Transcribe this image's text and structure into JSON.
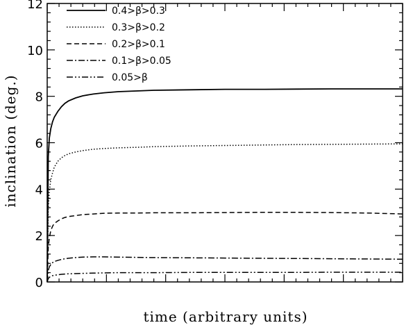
{
  "chart_data": {
    "type": "line",
    "title": "",
    "xlabel": "time (arbitrary units)",
    "ylabel": "inclination (deg.)",
    "xlim": [
      0,
      100
    ],
    "ylim": [
      0,
      12
    ],
    "yticks": [
      0,
      2,
      4,
      6,
      8,
      10,
      12
    ],
    "x_tick_labels_shown": false,
    "legend_position": "top-left",
    "series": [
      {
        "name": "0.4>β>0.3",
        "style": "solid",
        "x": [
          0,
          0.3,
          0.6,
          1,
          1.5,
          2,
          3,
          4,
          5,
          6,
          8,
          10,
          13,
          16,
          20,
          25,
          30,
          40,
          50,
          60,
          70,
          80,
          90,
          100
        ],
        "values": [
          0,
          5.4,
          6.2,
          6.6,
          6.9,
          7.1,
          7.35,
          7.55,
          7.7,
          7.8,
          7.93,
          8.02,
          8.1,
          8.15,
          8.2,
          8.23,
          8.26,
          8.28,
          8.3,
          8.3,
          8.31,
          8.32,
          8.32,
          8.32
        ]
      },
      {
        "name": "0.3>β>0.2",
        "style": "dotted",
        "x": [
          0,
          0.3,
          0.6,
          1,
          1.5,
          2,
          3,
          4,
          5,
          6,
          8,
          10,
          13,
          16,
          20,
          25,
          30,
          40,
          50,
          60,
          70,
          80,
          90,
          100
        ],
        "values": [
          0,
          3.2,
          3.9,
          4.4,
          4.7,
          4.95,
          5.2,
          5.35,
          5.45,
          5.52,
          5.6,
          5.66,
          5.72,
          5.75,
          5.78,
          5.8,
          5.83,
          5.86,
          5.88,
          5.9,
          5.92,
          5.93,
          5.94,
          5.95
        ]
      },
      {
        "name": "0.2>β>0.1",
        "style": "dashed",
        "x": [
          0,
          0.3,
          0.6,
          1,
          1.5,
          2,
          3,
          4,
          5,
          6,
          8,
          10,
          13,
          16,
          20,
          25,
          30,
          40,
          50,
          60,
          70,
          80,
          90,
          100
        ],
        "values": [
          0,
          1.5,
          1.9,
          2.2,
          2.4,
          2.52,
          2.63,
          2.72,
          2.78,
          2.82,
          2.86,
          2.9,
          2.93,
          2.96,
          2.97,
          2.97,
          2.98,
          2.98,
          2.99,
          3.0,
          3.0,
          2.99,
          2.97,
          2.93
        ]
      },
      {
        "name": "0.1>β>0.05",
        "style": "dashdot",
        "x": [
          0,
          0.3,
          0.6,
          1,
          1.5,
          2,
          3,
          4,
          5,
          6,
          8,
          10,
          13,
          16,
          20,
          25,
          30,
          40,
          50,
          60,
          70,
          80,
          90,
          100
        ],
        "values": [
          0,
          0.5,
          0.65,
          0.75,
          0.83,
          0.88,
          0.93,
          0.97,
          1.0,
          1.02,
          1.05,
          1.07,
          1.08,
          1.08,
          1.07,
          1.06,
          1.05,
          1.04,
          1.03,
          1.02,
          1.01,
          1.0,
          0.99,
          0.98
        ]
      },
      {
        "name": "0.05>β",
        "style": "dashdotdot",
        "x": [
          0,
          0.3,
          0.6,
          1,
          1.5,
          2,
          3,
          4,
          5,
          6,
          8,
          10,
          13,
          16,
          20,
          25,
          30,
          40,
          50,
          60,
          70,
          80,
          90,
          100
        ],
        "values": [
          0,
          0.15,
          0.2,
          0.24,
          0.27,
          0.29,
          0.31,
          0.33,
          0.34,
          0.35,
          0.36,
          0.37,
          0.38,
          0.39,
          0.4,
          0.4,
          0.4,
          0.41,
          0.41,
          0.41,
          0.41,
          0.42,
          0.42,
          0.42
        ]
      }
    ]
  }
}
